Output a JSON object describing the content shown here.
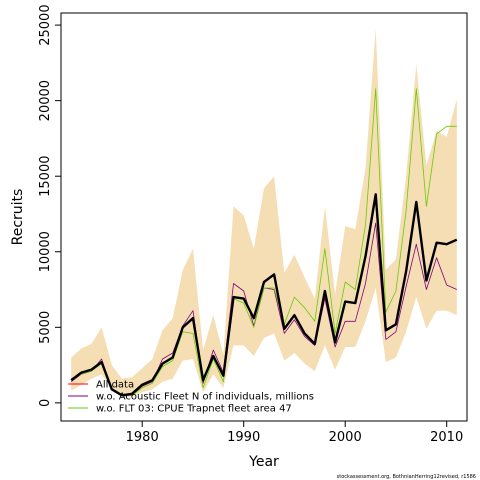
{
  "chart_data": {
    "type": "line",
    "xlabel": "Year",
    "ylabel": "Recruits",
    "xlim": [
      1972,
      2012
    ],
    "ylim": [
      -1200,
      25800
    ],
    "x_ticks": [
      1980,
      1990,
      2000,
      2010
    ],
    "y_ticks": [
      0,
      5000,
      10000,
      15000,
      20000,
      25000
    ],
    "x_tick_labels": [
      "1980",
      "1990",
      "2000",
      "2010"
    ],
    "y_tick_labels": [
      "0",
      "5000",
      "10000",
      "15000",
      "20000",
      "25000"
    ],
    "band_color": "#f5deb3",
    "years": [
      1973,
      1974,
      1975,
      1976,
      1977,
      1978,
      1979,
      1980,
      1981,
      1982,
      1983,
      1984,
      1985,
      1986,
      1987,
      1988,
      1989,
      1990,
      1991,
      1992,
      1993,
      1994,
      1995,
      1996,
      1997,
      1998,
      1999,
      2000,
      2001,
      2002,
      2003,
      2004,
      2005,
      2006,
      2007,
      2008,
      2009,
      2010,
      2011
    ],
    "band_upper": [
      3000,
      3600,
      3900,
      5000,
      2500,
      1600,
      1700,
      2300,
      2900,
      4800,
      5600,
      8800,
      10200,
      3500,
      5800,
      3200,
      13000,
      12400,
      10200,
      14200,
      15000,
      8600,
      9800,
      8300,
      6900,
      13000,
      7200,
      11700,
      11500,
      15500,
      24800,
      8800,
      9500,
      15000,
      22400,
      15700,
      18000,
      17600,
      20100
    ],
    "band_lower": [
      800,
      1200,
      1600,
      1900,
      900,
      400,
      400,
      700,
      900,
      1400,
      1600,
      2800,
      2900,
      700,
      1900,
      1000,
      3800,
      3800,
      3100,
      4300,
      4600,
      2800,
      3300,
      2600,
      2100,
      3800,
      2200,
      3700,
      3700,
      5400,
      7600,
      2700,
      3000,
      4700,
      7000,
      4900,
      6100,
      6100,
      5800
    ],
    "legend_position": "bottom-left",
    "series": [
      {
        "name": "All data",
        "color": "#000000",
        "width": 2.4,
        "values": [
          1500,
          2000,
          2200,
          2700,
          900,
          500,
          600,
          1200,
          1500,
          2600,
          3000,
          5000,
          5600,
          1500,
          3100,
          1800,
          7000,
          6900,
          5600,
          8000,
          8500,
          4900,
          5800,
          4600,
          3900,
          7400,
          4000,
          6700,
          6600,
          9700,
          13800,
          4800,
          5200,
          8700,
          13300,
          8100,
          10600,
          10500,
          10800
        ]
      },
      {
        "name": "w.o. Acoustic Fleet  N of individuals, millions",
        "color": "#800080",
        "width": 0.8,
        "values": [
          1400,
          1900,
          2100,
          2900,
          900,
          500,
          500,
          1100,
          1400,
          2900,
          3300,
          5100,
          6100,
          1300,
          3500,
          2000,
          7900,
          7400,
          5100,
          7600,
          7500,
          4600,
          5500,
          4400,
          3800,
          6900,
          3700,
          5400,
          5400,
          7900,
          11900,
          4200,
          4700,
          7700,
          10500,
          7500,
          9600,
          7800,
          7500
        ]
      },
      {
        "name": "w.o. FLT 03: CPUE Trapnet fleet area 47",
        "color": "#66cc00",
        "width": 0.8,
        "values": [
          1600,
          1900,
          2100,
          2600,
          900,
          500,
          500,
          1000,
          1300,
          2400,
          2800,
          4700,
          4600,
          1000,
          2900,
          1400,
          6900,
          6600,
          5000,
          7600,
          7600,
          5200,
          7000,
          6300,
          5400,
          10200,
          4600,
          8000,
          7500,
          11800,
          20800,
          6000,
          7400,
          12700,
          20800,
          13000,
          17800,
          18300,
          18300
        ]
      }
    ],
    "credit": "stockassessment.org, BothnianHerring12revised, r1586"
  }
}
